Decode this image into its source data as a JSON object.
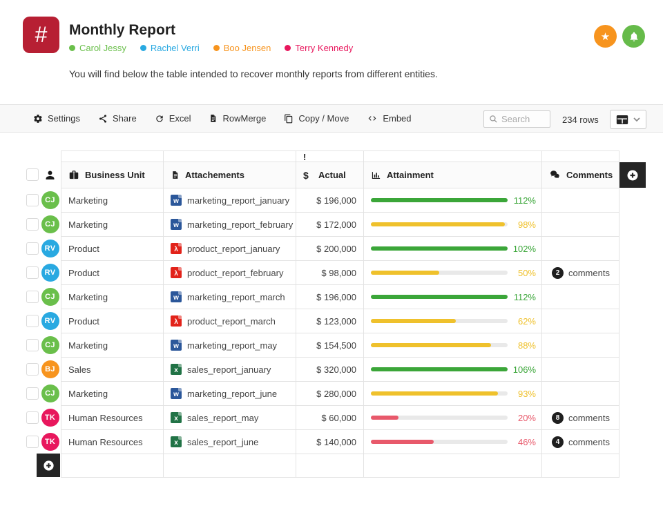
{
  "header": {
    "logo_glyph": "#",
    "logo_color": "#b71f33",
    "title": "Monthly Report",
    "members": [
      {
        "name": "Carol Jessy",
        "color": "#6abf4b"
      },
      {
        "name": "Rachel Verri",
        "color": "#29a9e1"
      },
      {
        "name": "Boo Jensen",
        "color": "#f7941e"
      },
      {
        "name": "Terry Kennedy",
        "color": "#e8175d"
      }
    ],
    "description": "You will find below the table intended to recover monthly reports from different entities.",
    "star_button_color": "#f7941e",
    "bell_button_color": "#66bb4a"
  },
  "toolbar": {
    "items": [
      {
        "label": "Settings",
        "icon": "gear-icon"
      },
      {
        "label": "Share",
        "icon": "share-icon"
      },
      {
        "label": "Excel",
        "icon": "refresh-icon"
      },
      {
        "label": "RowMerge",
        "icon": "document-icon"
      },
      {
        "label": "Copy / Move",
        "icon": "copy-icon"
      },
      {
        "label": "Embed",
        "icon": "code-icon"
      }
    ],
    "search_placeholder": "Search",
    "row_count": "234 rows"
  },
  "table": {
    "alert_marker": "!",
    "columns": [
      {
        "label": "Business Unit",
        "icon": "briefcase-icon",
        "class": "c-unit"
      },
      {
        "label": "Attachements",
        "icon": "document-icon",
        "class": "c-file"
      },
      {
        "label": "Actual",
        "icon": "dollar-icon",
        "class": "c-actual h-actual"
      },
      {
        "label": "Attainment",
        "icon": "bar-chart-icon",
        "class": "c-attain"
      },
      {
        "label": "Comments",
        "icon": "comments-icon",
        "class": "c-comments"
      }
    ],
    "levels": {
      "green": "#3ba639",
      "yellow": "#efc12c",
      "red": "#e8596b"
    },
    "file_types": {
      "word": {
        "color": "#2b579a",
        "glyph": "w"
      },
      "pdf": {
        "color": "#e2231a",
        "glyph": "λ"
      },
      "excel": {
        "color": "#217346",
        "glyph": "x"
      }
    },
    "comments_word": "comments",
    "rows": [
      {
        "avatar": {
          "initials": "CJ",
          "color": "#6abf4b"
        },
        "unit": "Marketing",
        "file": {
          "name": "marketing_report_january",
          "type": "word"
        },
        "actual": "$ 196,000",
        "attainment": {
          "percent": 112,
          "level": "green"
        },
        "comments": null
      },
      {
        "avatar": {
          "initials": "CJ",
          "color": "#6abf4b"
        },
        "unit": "Marketing",
        "file": {
          "name": "marketing_report_february",
          "type": "word"
        },
        "actual": "$ 172,000",
        "attainment": {
          "percent": 98,
          "level": "yellow"
        },
        "comments": null
      },
      {
        "avatar": {
          "initials": "RV",
          "color": "#29a9e1"
        },
        "unit": "Product",
        "file": {
          "name": "product_report_january",
          "type": "pdf"
        },
        "actual": "$ 200,000",
        "attainment": {
          "percent": 102,
          "level": "green"
        },
        "comments": null
      },
      {
        "avatar": {
          "initials": "RV",
          "color": "#29a9e1"
        },
        "unit": "Product",
        "file": {
          "name": "product_report_february",
          "type": "pdf"
        },
        "actual": "$ 98,000",
        "attainment": {
          "percent": 50,
          "level": "yellow"
        },
        "comments": 2
      },
      {
        "avatar": {
          "initials": "CJ",
          "color": "#6abf4b"
        },
        "unit": "Marketing",
        "file": {
          "name": "marketing_report_march",
          "type": "word"
        },
        "actual": "$ 196,000",
        "attainment": {
          "percent": 112,
          "level": "green"
        },
        "comments": null
      },
      {
        "avatar": {
          "initials": "RV",
          "color": "#29a9e1"
        },
        "unit": "Product",
        "file": {
          "name": "product_report_march",
          "type": "pdf"
        },
        "actual": "$ 123,000",
        "attainment": {
          "percent": 62,
          "level": "yellow"
        },
        "comments": null
      },
      {
        "avatar": {
          "initials": "CJ",
          "color": "#6abf4b"
        },
        "unit": "Marketing",
        "file": {
          "name": "marketing_report_may",
          "type": "word"
        },
        "actual": "$ 154,500",
        "attainment": {
          "percent": 88,
          "level": "yellow"
        },
        "comments": null
      },
      {
        "avatar": {
          "initials": "BJ",
          "color": "#f7941e"
        },
        "unit": "Sales",
        "file": {
          "name": "sales_report_january",
          "type": "excel"
        },
        "actual": "$ 320,000",
        "attainment": {
          "percent": 106,
          "level": "green"
        },
        "comments": null
      },
      {
        "avatar": {
          "initials": "CJ",
          "color": "#6abf4b"
        },
        "unit": "Marketing",
        "file": {
          "name": "marketing_report_june",
          "type": "word"
        },
        "actual": "$ 280,000",
        "attainment": {
          "percent": 93,
          "level": "yellow"
        },
        "comments": null
      },
      {
        "avatar": {
          "initials": "TK",
          "color": "#e8175d"
        },
        "unit": "Human Resources",
        "file": {
          "name": "sales_report_may",
          "type": "excel"
        },
        "actual": "$ 60,000",
        "attainment": {
          "percent": 20,
          "level": "red"
        },
        "comments": 8
      },
      {
        "avatar": {
          "initials": "TK",
          "color": "#e8175d"
        },
        "unit": "Human Resources",
        "file": {
          "name": "sales_report_june",
          "type": "excel"
        },
        "actual": "$ 140,000",
        "attainment": {
          "percent": 46,
          "level": "red"
        },
        "comments": 4
      }
    ]
  }
}
